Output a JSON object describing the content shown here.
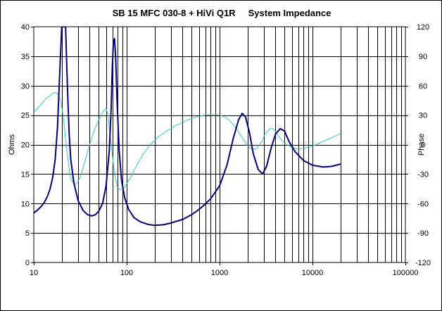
{
  "chart_data": {
    "type": "line",
    "title": "SB 15 MFC 030-8 + HiVi Q1R     System Impedance",
    "xlabel": "",
    "ylabel": "Ohms",
    "y2label": "Phase",
    "xscale": "log",
    "xlim": [
      10,
      100000
    ],
    "ylim": [
      0,
      40
    ],
    "y2lim": [
      -120,
      120
    ],
    "x_tick_labels": [
      "10",
      "100",
      "1000",
      "10000",
      "100000"
    ],
    "y_tick_labels": [
      "0",
      "5",
      "10",
      "15",
      "20",
      "25",
      "30",
      "35",
      "40"
    ],
    "y2_tick_labels": [
      "-120",
      "-90",
      "-60",
      "-30",
      "0",
      "30",
      "60",
      "90",
      "120"
    ],
    "grid": true,
    "legend": "none",
    "series": [
      {
        "role": "impedance",
        "axis": "left",
        "color": "#000080",
        "points": [
          [
            10,
            8.4
          ],
          [
            11,
            8.9
          ],
          [
            12,
            9.5
          ],
          [
            13,
            10.2
          ],
          [
            14,
            11.2
          ],
          [
            15,
            12.5
          ],
          [
            16,
            14.5
          ],
          [
            17,
            17.5
          ],
          [
            18,
            23.0
          ],
          [
            19,
            32.0
          ],
          [
            20,
            40.0
          ],
          [
            21,
            40.0
          ],
          [
            22,
            40.0
          ],
          [
            23,
            30.0
          ],
          [
            24,
            22.0
          ],
          [
            25,
            17.5
          ],
          [
            27,
            13.5
          ],
          [
            30,
            10.5
          ],
          [
            34,
            8.8
          ],
          [
            38,
            8.1
          ],
          [
            42,
            7.9
          ],
          [
            46,
            8.1
          ],
          [
            50,
            8.7
          ],
          [
            55,
            10.0
          ],
          [
            60,
            13.0
          ],
          [
            65,
            19.0
          ],
          [
            68,
            26.0
          ],
          [
            70,
            33.0
          ],
          [
            72,
            37.5
          ],
          [
            74,
            38.0
          ],
          [
            76,
            35.0
          ],
          [
            79,
            27.0
          ],
          [
            83,
            19.0
          ],
          [
            88,
            14.0
          ],
          [
            95,
            11.0
          ],
          [
            105,
            9.0
          ],
          [
            120,
            7.6
          ],
          [
            140,
            6.9
          ],
          [
            170,
            6.45
          ],
          [
            200,
            6.3
          ],
          [
            250,
            6.4
          ],
          [
            300,
            6.7
          ],
          [
            400,
            7.3
          ],
          [
            500,
            8.1
          ],
          [
            600,
            9.0
          ],
          [
            700,
            9.9
          ],
          [
            800,
            10.8
          ],
          [
            1000,
            13.0
          ],
          [
            1200,
            16.5
          ],
          [
            1400,
            21.0
          ],
          [
            1600,
            24.2
          ],
          [
            1750,
            25.3
          ],
          [
            1900,
            24.7
          ],
          [
            2100,
            22.0
          ],
          [
            2300,
            18.5
          ],
          [
            2600,
            15.8
          ],
          [
            2900,
            15.0
          ],
          [
            3200,
            16.3
          ],
          [
            3600,
            19.5
          ],
          [
            4000,
            21.8
          ],
          [
            4500,
            22.7
          ],
          [
            5000,
            22.3
          ],
          [
            5600,
            20.5
          ],
          [
            6500,
            18.8
          ],
          [
            8000,
            17.3
          ],
          [
            10000,
            16.5
          ],
          [
            13000,
            16.2
          ],
          [
            16000,
            16.3
          ],
          [
            20000,
            16.7
          ]
        ]
      },
      {
        "role": "phase",
        "axis": "right",
        "color": "#33CCCC",
        "points": [
          [
            10,
            33
          ],
          [
            11,
            37
          ],
          [
            12,
            41
          ],
          [
            13,
            45
          ],
          [
            14,
            48
          ],
          [
            15,
            50
          ],
          [
            16,
            52
          ],
          [
            17,
            53
          ],
          [
            18,
            52
          ],
          [
            19,
            48
          ],
          [
            20,
            38
          ],
          [
            21,
            25
          ],
          [
            22,
            5
          ],
          [
            23,
            -10
          ],
          [
            24,
            -25
          ],
          [
            25,
            -35
          ],
          [
            27,
            -40
          ],
          [
            29,
            -40
          ],
          [
            32,
            -32
          ],
          [
            36,
            -15
          ],
          [
            40,
            0
          ],
          [
            45,
            15
          ],
          [
            50,
            25
          ],
          [
            55,
            33
          ],
          [
            60,
            37
          ],
          [
            63,
            30
          ],
          [
            66,
            10
          ],
          [
            70,
            -10
          ],
          [
            74,
            -30
          ],
          [
            79,
            -43
          ],
          [
            85,
            -46
          ],
          [
            92,
            -45
          ],
          [
            100,
            -40
          ],
          [
            115,
            -30
          ],
          [
            130,
            -20
          ],
          [
            150,
            -10
          ],
          [
            180,
            0
          ],
          [
            220,
            8
          ],
          [
            270,
            14
          ],
          [
            350,
            20
          ],
          [
            450,
            25
          ],
          [
            550,
            28
          ],
          [
            700,
            30
          ],
          [
            850,
            30.5
          ],
          [
            1000,
            30
          ],
          [
            1150,
            28
          ],
          [
            1300,
            24
          ],
          [
            1500,
            17
          ],
          [
            1700,
            9
          ],
          [
            1900,
            2
          ],
          [
            2100,
            -3
          ],
          [
            2300,
            -5
          ],
          [
            2500,
            -4
          ],
          [
            2800,
            2
          ],
          [
            3100,
            11
          ],
          [
            3500,
            16.5
          ],
          [
            3800,
            16
          ],
          [
            4200,
            10
          ],
          [
            4700,
            4
          ],
          [
            5300,
            0
          ],
          [
            6000,
            -3
          ],
          [
            7000,
            -4.5
          ],
          [
            8000,
            -4
          ],
          [
            9500,
            -2
          ],
          [
            11000,
            0
          ],
          [
            13500,
            4
          ],
          [
            16000,
            7
          ],
          [
            20000,
            11
          ]
        ]
      }
    ]
  }
}
